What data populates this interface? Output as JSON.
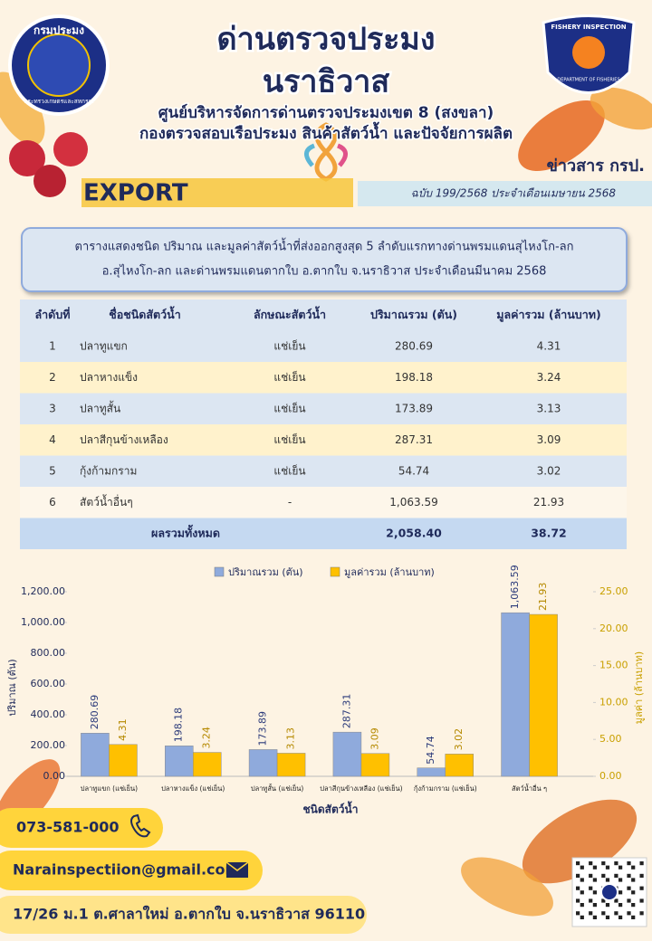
{
  "header": {
    "logo_left": "กรมประมง",
    "logo_left_sub": "กระทรวงเกษตรและสหกรณ์",
    "logo_right_top": "FISHERY INSPECTION",
    "logo_right_bottom": "DEPARTMENT OF FISHERIES",
    "title1": "ด่านตรวจประมง",
    "title2": "นราธิวาส",
    "subtitle1": "ศูนย์บริหารจัดการด่านตรวจประมงเขต 8 (สงขลา)",
    "subtitle2": "กองตรวจสอบเรือประมง สินค้าสัตว์น้ำ และปัจจัยการผลิต",
    "news": "ข่าวสาร กรป.",
    "export": "EXPORT",
    "issue": "ฉบับ 199/2568 ประจำเดือนเมษายน 2568"
  },
  "caption": [
    "ตารางแสดงชนิด ปริมาณ และมูลค่าสัตว์น้ำที่ส่งออกสูงสุด 5 ลำดับแรกทางด่านพรมแดนสุไหงโก-ลก",
    "อ.สุไหงโก-ลก และด่านพรมแดนตากใบ อ.ตากใบ จ.นราธิวาส ประจำเดือนมีนาคม 2568"
  ],
  "table": {
    "headers": [
      "ลำดับที่",
      "ชื่อชนิดสัตว์น้ำ",
      "ลักษณะสัตว์น้ำ",
      "ปริมาณรวม (ตัน)",
      "มูลค่ารวม (ล้านบาท)"
    ],
    "rows": [
      [
        "1",
        "ปลาทูแขก",
        "แช่เย็น",
        "280.69",
        "4.31"
      ],
      [
        "2",
        "ปลาหางแข็ง",
        "แช่เย็น",
        "198.18",
        "3.24"
      ],
      [
        "3",
        "ปลาทูสั้น",
        "แช่เย็น",
        "173.89",
        "3.13"
      ],
      [
        "4",
        "ปลาสีกุนข้างเหลือง",
        "แช่เย็น",
        "287.31",
        "3.09"
      ],
      [
        "5",
        "กุ้งก้ามกราม",
        "แช่เย็น",
        "54.74",
        "3.02"
      ],
      [
        "6",
        "สัตว์น้ำอื่นๆ",
        "-",
        "1,063.59",
        "21.93"
      ]
    ],
    "total": [
      "ผลรวมทั้งหมด",
      "2,058.40",
      "38.72"
    ]
  },
  "chart_data": {
    "type": "bar",
    "xlabel": "ชนิดสัตว์น้ำ",
    "ylabel": "ปริมาณ (ตัน)",
    "y2label": "มูลค่า (ล้านบาท)",
    "categories": [
      "ปลาทูแขก (แช่เย็น)",
      "ปลาหางแข็ง (แช่เย็น)",
      "ปลาทูสั้น (แช่เย็น)",
      "ปลาสีกุนข้างเหลือง (แช่เย็น)",
      "กุ้งก้ามกราม (แช่เย็น)",
      "สัตว์น้ำอื่น ๆ"
    ],
    "series": [
      {
        "name": "ปริมาณรวม (ตัน)",
        "color": "#8faadc",
        "values": [
          280.69,
          198.18,
          173.89,
          287.31,
          54.74,
          1063.59
        ],
        "value_labels": [
          "280.69",
          "198.18",
          "173.89",
          "287.31",
          "54.74",
          "1,063.59"
        ]
      },
      {
        "name": "มูลค่ารวม (ล้านบาท)",
        "color": "#ffc000",
        "axis": "y2",
        "values": [
          4.31,
          3.24,
          3.13,
          3.09,
          3.02,
          21.93
        ]
      }
    ],
    "ylim": [
      0,
      1200
    ],
    "yticks": [
      {
        "value": 0,
        "label": "0.00"
      },
      {
        "value": 200,
        "label": "200.00"
      },
      {
        "value": 400,
        "label": "400.00"
      },
      {
        "value": 600,
        "label": "600.00"
      },
      {
        "value": 800,
        "label": "800.00"
      },
      {
        "value": 1000,
        "label": "1,000.00"
      },
      {
        "value": 1200,
        "label": "1,200.00"
      }
    ],
    "y2lim": [
      0,
      25
    ],
    "y2ticks": [
      {
        "value": 0,
        "label": "0.00"
      },
      {
        "value": 5,
        "label": "5.00"
      },
      {
        "value": 10,
        "label": "10.00"
      },
      {
        "value": 15,
        "label": "15.00"
      },
      {
        "value": 20,
        "label": "20.00"
      },
      {
        "value": 25,
        "label": "25.00"
      }
    ],
    "legend": "top"
  },
  "contact": {
    "phone": "073-581-000",
    "email": "Narainspectiion@gmail.com",
    "address": "17/26 ม.1 ต.ศาลาใหม่ อ.ตากใบ จ.นราธิวาส 96110"
  }
}
